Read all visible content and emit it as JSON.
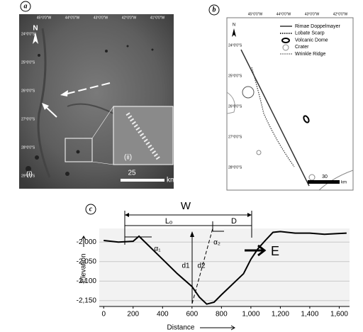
{
  "panels": {
    "a": {
      "label": "a",
      "lon_labels": [
        "45°0'0\"W",
        "44°0'0\"W",
        "43°0'0\"W",
        "42°0'0\"W",
        "41°0'0\"W"
      ],
      "lat_labels": [
        "24°0'0\"S",
        "25°0'0\"S",
        "26°0'0\"S",
        "27°0'0\"S",
        "28°0'0\"S",
        "29°0'0\"S"
      ],
      "north": "N",
      "inset_labels": [
        "(i)",
        "(ii)"
      ],
      "scale_value": "25",
      "scale_unit": "km"
    },
    "b": {
      "label": "b",
      "lon_labels": [
        "45°0'0\"W",
        "44°0'0\"W",
        "43°0'0\"W",
        "42°0'0\"W"
      ],
      "lat_labels": [
        "24°0'0\"S",
        "25°0'0\"S",
        "26°0'0\"S",
        "27°0'0\"S",
        "28°0'0\"S"
      ],
      "north": "N",
      "legend": [
        "Rimae Doppelmayer",
        "Lobate Scarp",
        "Volcanic Dome",
        "Crater",
        "Wrinkle Ridge"
      ],
      "scale_value": "30",
      "scale_unit": "km"
    },
    "c": {
      "label": "c"
    }
  },
  "chart_data": {
    "type": "line",
    "x_label": "Distance",
    "y_label": "Elevation",
    "annotations": [
      "W",
      "Lₒ",
      "D",
      "α₁",
      "α₂",
      "d1",
      "d2",
      "E"
    ],
    "x": [
      0,
      100,
      200,
      240,
      300,
      400,
      500,
      600,
      650,
      700,
      750,
      800,
      850,
      900,
      950,
      1000,
      1050,
      1100,
      1150,
      1200,
      1300,
      1400,
      1500,
      1600,
      1650
    ],
    "values": [
      -1996,
      -2000,
      -1998,
      -1985,
      -2007,
      -2044,
      -2081,
      -2114,
      -2141,
      -2159,
      -2154,
      -2135,
      -2117,
      -2099,
      -2081,
      -2044,
      -2016,
      -1995,
      -1975,
      -1973,
      -1977,
      -1977,
      -1980,
      -1978,
      -1977
    ],
    "color": "#000000",
    "xlim": [
      -30,
      1670
    ],
    "xticks": [
      0,
      200,
      400,
      600,
      800,
      {
        "value": 1000,
        "label": "1,000"
      },
      {
        "value": 1200,
        "label": "1,200"
      },
      {
        "value": 1400,
        "label": "1,400"
      },
      {
        "value": 1600,
        "label": "1,600"
      }
    ],
    "ylim": [
      -2165,
      -1965
    ],
    "yticks": [
      {
        "value": -2000,
        "label": "-2,000"
      },
      {
        "value": -2050,
        "label": "-2,050"
      },
      {
        "value": -2100,
        "label": "-2,100"
      },
      {
        "value": -2150,
        "label": "-2,150"
      }
    ],
    "grid": true
  }
}
